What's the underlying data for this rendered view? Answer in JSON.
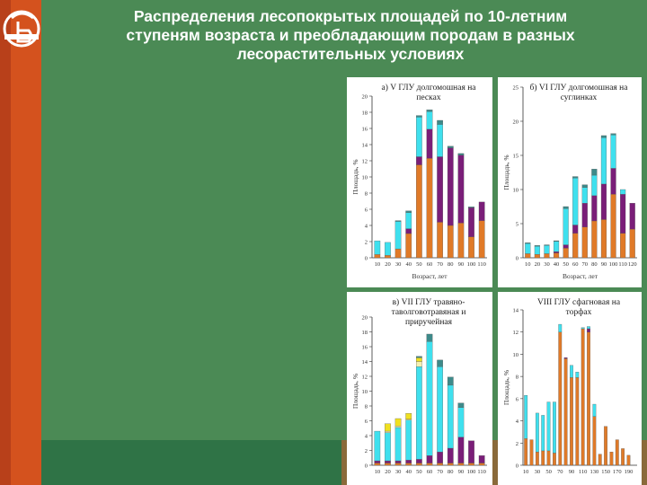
{
  "slide": {
    "title_lines": [
      "Распределения лесопокрытых площадей по 10-летним",
      "ступеням возраста и преобладающим породам в разных",
      "лесорастительных условиях"
    ]
  },
  "colors": {
    "background": "#4b8a55",
    "stripe_left": "#d4521e",
    "stripe_bottom": "#2f7346",
    "orange": "#e07a28",
    "purple": "#7a1e78",
    "cyan": "#3fe0ee",
    "teal": "#3e8a8a",
    "yellow": "#f0e020",
    "pale_yellow": "#f4f0b0"
  },
  "chart_data": [
    {
      "type": "bar",
      "stacked": true,
      "title_lines": [
        "а) V ГЛУ долгомошная на",
        "песках"
      ],
      "ylabel": "Площадь, %",
      "xlabel": "Возраст, лет",
      "ylim": [
        0,
        20
      ],
      "yticks": [
        0,
        2,
        4,
        6,
        8,
        10,
        12,
        14,
        16,
        18,
        20
      ],
      "categories": [
        "10",
        "20",
        "30",
        "40",
        "50",
        "60",
        "70",
        "80",
        "90",
        "100",
        "110"
      ],
      "series": [
        {
          "color": "orange",
          "values": [
            0.4,
            0.3,
            1.1,
            3.0,
            11.5,
            12.3,
            4.4,
            4.0,
            4.3,
            2.6,
            4.6
          ]
        },
        {
          "color": "purple",
          "values": [
            0,
            0,
            0,
            0.6,
            1.0,
            3.6,
            8.1,
            9.6,
            8.4,
            3.6,
            2.3
          ]
        },
        {
          "color": "cyan",
          "values": [
            1.7,
            1.6,
            3.4,
            2.0,
            4.9,
            2.2,
            4.0,
            0,
            0,
            0,
            0
          ]
        },
        {
          "color": "teal",
          "values": [
            0,
            0,
            0.1,
            0.2,
            0.2,
            0.2,
            0.5,
            0.2,
            0.2,
            0.1,
            0
          ]
        }
      ]
    },
    {
      "type": "bar",
      "stacked": true,
      "title_lines": [
        "б) VI ГЛУ долгомошная на",
        "суглинках"
      ],
      "ylabel": "Площадь, %",
      "xlabel": "Возраст, лет",
      "ylim": [
        0,
        25
      ],
      "yticks": [
        0,
        5,
        10,
        15,
        20,
        25
      ],
      "categories": [
        "10",
        "20",
        "30",
        "40",
        "50",
        "60",
        "70",
        "80",
        "90",
        "100",
        "110",
        "120"
      ],
      "series": [
        {
          "color": "orange",
          "values": [
            0.6,
            0.5,
            0.6,
            0.7,
            1.4,
            3.6,
            4.5,
            5.4,
            5.6,
            9.3,
            3.6,
            4.2
          ]
        },
        {
          "color": "purple",
          "values": [
            0,
            0,
            0,
            0.2,
            0.5,
            1.2,
            3.5,
            3.7,
            5.2,
            3.8,
            5.7,
            3.8
          ]
        },
        {
          "color": "cyan",
          "values": [
            1.5,
            1.2,
            1.2,
            1.5,
            5.3,
            6.9,
            2.3,
            3.0,
            6.8,
            4.9,
            0.7,
            0
          ]
        },
        {
          "color": "teal",
          "values": [
            0.1,
            0.1,
            0.1,
            0.1,
            0.3,
            0.2,
            0.4,
            0.9,
            0.3,
            0.2,
            0,
            0
          ]
        }
      ]
    },
    {
      "type": "bar",
      "stacked": true,
      "title_lines": [
        "в) VII ГЛУ травяно-",
        "таволговотравяная и",
        "приручейная"
      ],
      "ylabel": "Площадь, %",
      "xlabel": "",
      "ylim": [
        0,
        20
      ],
      "yticks": [
        0,
        2,
        4,
        6,
        8,
        10,
        12,
        14,
        16,
        18,
        20
      ],
      "categories": [
        "10",
        "20",
        "30",
        "40",
        "50",
        "60",
        "70",
        "80",
        "90",
        "100",
        "110"
      ],
      "series": [
        {
          "color": "orange",
          "values": [
            0.3,
            0.3,
            0.3,
            0.3,
            0.3,
            0.3,
            0.3,
            0.3,
            0.3,
            0.3,
            0.3
          ]
        },
        {
          "color": "purple",
          "values": [
            0.3,
            0.3,
            0.3,
            0.4,
            0.5,
            1.0,
            1.5,
            2.0,
            3.5,
            3.0,
            1.0
          ]
        },
        {
          "color": "cyan",
          "values": [
            4.0,
            3.8,
            4.5,
            5.4,
            12.5,
            15.4,
            11.5,
            8.5,
            4.0,
            0,
            0
          ]
        },
        {
          "color": "pale_yellow",
          "values": [
            0,
            0.2,
            0.2,
            0.1,
            0.7,
            0,
            0,
            0,
            0,
            0,
            0
          ]
        },
        {
          "color": "yellow",
          "values": [
            0,
            1.0,
            1.0,
            0.8,
            0.5,
            0,
            0,
            0,
            0,
            0,
            0
          ]
        },
        {
          "color": "teal",
          "values": [
            0,
            0,
            0,
            0,
            0.2,
            1.0,
            0.9,
            1.1,
            0.6,
            0,
            0
          ]
        }
      ]
    },
    {
      "type": "bar",
      "stacked": true,
      "title_lines": [
        "VIII ГЛУ сфагновая на",
        "торфах"
      ],
      "ylabel": "Площадь, %",
      "xlabel": "",
      "ylim": [
        0,
        14
      ],
      "yticks": [
        0,
        2,
        4,
        6,
        8,
        10,
        12,
        14
      ],
      "categories": [
        "10",
        "20",
        "30",
        "40",
        "50",
        "60",
        "70",
        "80",
        "90",
        "100",
        "110",
        "120",
        "130",
        "140",
        "150",
        "160",
        "170",
        "180",
        "190",
        "200"
      ],
      "series": [
        {
          "color": "orange",
          "values": [
            2.4,
            2.3,
            1.2,
            1.3,
            1.3,
            1.1,
            12.0,
            9.6,
            7.9,
            7.9,
            12.3,
            12.0,
            4.4,
            1.0,
            3.5,
            1.2,
            2.3,
            1.5,
            0.9,
            0
          ]
        },
        {
          "color": "purple",
          "values": [
            0,
            0,
            0,
            0,
            0,
            0,
            0,
            0.1,
            0,
            0,
            0,
            0.3,
            0,
            0,
            0,
            0,
            0,
            0,
            0,
            0
          ]
        },
        {
          "color": "cyan",
          "values": [
            3.9,
            0,
            3.5,
            3.2,
            4.4,
            4.6,
            0.7,
            0,
            1.1,
            0.5,
            0.1,
            0.2,
            1.1,
            0,
            0,
            0,
            0,
            0,
            0,
            0
          ]
        },
        {
          "color": "teal",
          "values": [
            0,
            0,
            0,
            0,
            0,
            0,
            0,
            0,
            0,
            0,
            0,
            0,
            0,
            0,
            0,
            0,
            0,
            0,
            0,
            0
          ]
        }
      ]
    }
  ]
}
